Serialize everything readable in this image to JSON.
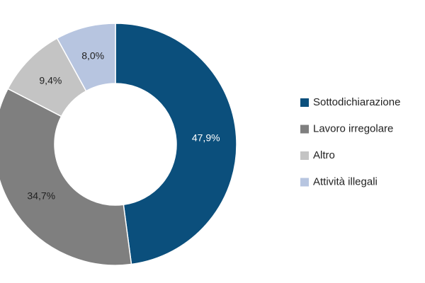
{
  "chart_data": {
    "type": "donut",
    "categories": [
      "Sottodichiarazione",
      "Lavoro irregolare",
      "Altro",
      "Attività illegali"
    ],
    "values": [
      47.9,
      34.7,
      9.4,
      8.0
    ],
    "value_labels": [
      "47,9%",
      "34,7%",
      "9,4%",
      "8,0%"
    ],
    "colors": [
      "#0b4f7c",
      "#7f7f7f",
      "#c4c4c4",
      "#b7c5e0"
    ],
    "label_colors": [
      "#ffffff",
      "#222222",
      "#222222",
      "#222222"
    ]
  }
}
